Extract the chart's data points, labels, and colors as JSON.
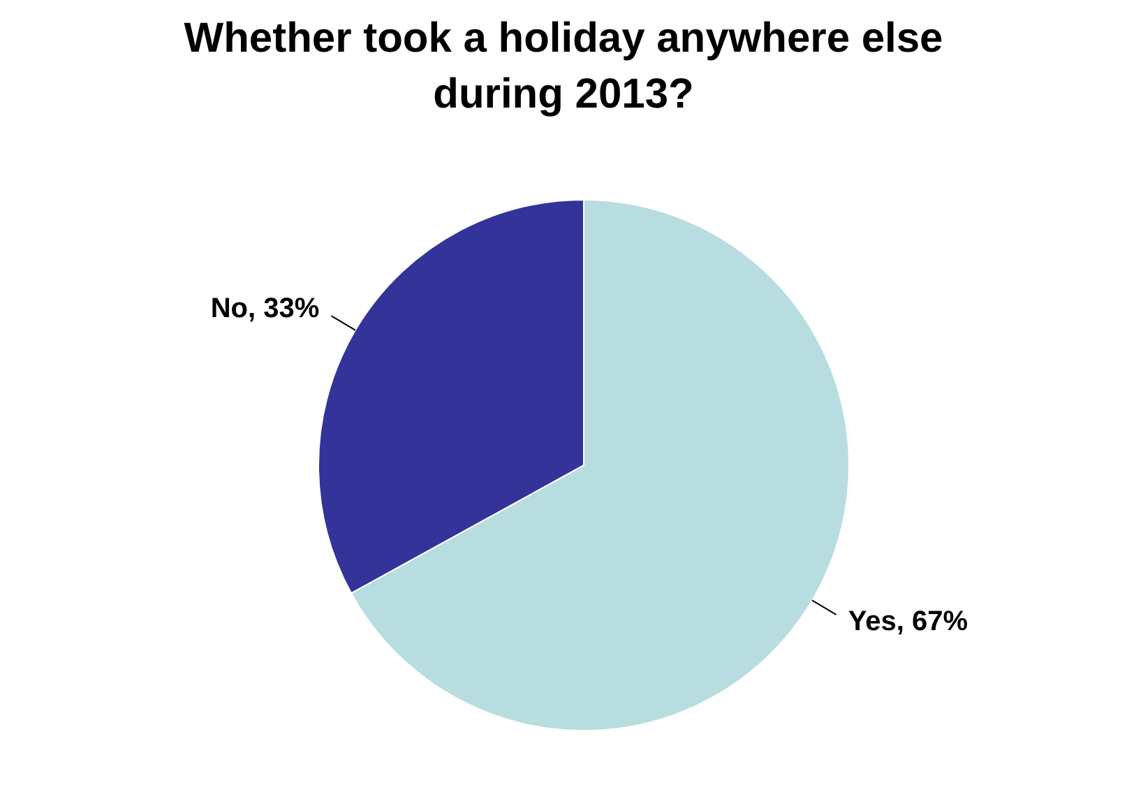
{
  "chart_data": {
    "type": "pie",
    "title": "Whether took a holiday anywhere else during 2013?",
    "categories": [
      "Yes",
      "No"
    ],
    "values": [
      67,
      33
    ],
    "colors": [
      "#b7dde0",
      "#333399"
    ],
    "value_labels": [
      "67%",
      "33%"
    ],
    "legend": false
  }
}
